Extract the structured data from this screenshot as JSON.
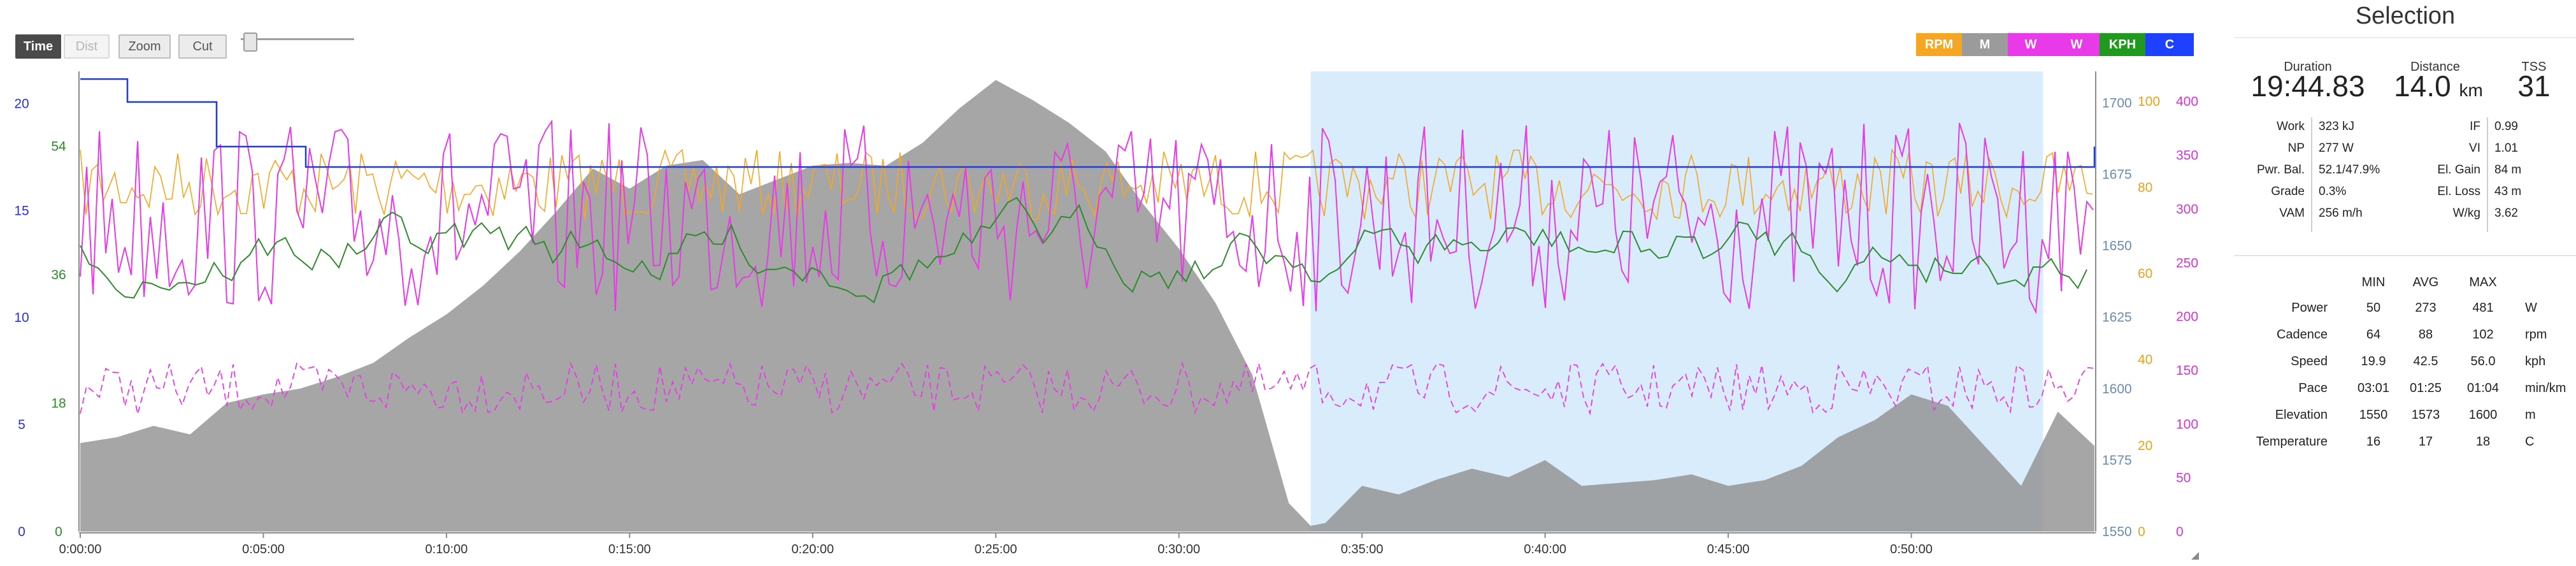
{
  "toolbar": {
    "buttons": [
      {
        "label": "Time",
        "state": "active"
      },
      {
        "label": "Dist",
        "state": "disabled"
      },
      {
        "label": "Zoom",
        "state": "normal"
      },
      {
        "label": "Cut",
        "state": "normal"
      }
    ]
  },
  "legend": [
    {
      "label": "RPM",
      "color": "#f5a623"
    },
    {
      "label": "M",
      "color": "#9b9b9b"
    },
    {
      "label": "W",
      "color": "#e83ae8"
    },
    {
      "label": "W",
      "color": "#e83ae8"
    },
    {
      "label": "KPH",
      "color": "#1f9a1f"
    },
    {
      "label": "C",
      "color": "#1e40ff"
    }
  ],
  "colors": {
    "elevation_fill": "#8d8d8d",
    "selection_fill": "#d8ecfb",
    "cadence": "#f5a623",
    "power": "#e83ae8",
    "speed": "#2e8b2e",
    "temperature": "#1e3be6"
  },
  "chart_data": {
    "type": "line",
    "x_label_ticks": [
      "0:00:00",
      "0:05:00",
      "0:10:00",
      "0:15:00",
      "0:20:00",
      "0:25:00",
      "0:30:00",
      "0:35:00",
      "0:40:00",
      "0:45:00",
      "0:50:00"
    ],
    "x_range_min": [
      0,
      55
    ],
    "selection_range_min": [
      33.6,
      53.6
    ],
    "axes": {
      "temperature_C": {
        "ticks": [
          "0",
          "5",
          "10",
          "15",
          "20"
        ],
        "range": [
          0,
          21.5
        ],
        "color": "#2d2de0"
      },
      "speed_kph": {
        "ticks": [
          "0",
          "18",
          "36",
          "54"
        ],
        "range": [
          0,
          64.5
        ],
        "color": "#2a8a2a"
      },
      "elevation_m": {
        "ticks": [
          "1550",
          "1575",
          "1600",
          "1625",
          "1650",
          "1675",
          "1700"
        ],
        "range": [
          1550,
          1711
        ],
        "color": "#6a8bb0"
      },
      "cadence_rpm": {
        "ticks": [
          "0",
          "20",
          "40",
          "60",
          "80",
          "100"
        ],
        "range": [
          0,
          107
        ],
        "color": "#e6a21a"
      },
      "power_w": {
        "ticks": [
          "0",
          "50",
          "100",
          "150",
          "200",
          "250",
          "300",
          "350",
          "400"
        ],
        "range": [
          0,
          428
        ],
        "color": "#d633d6"
      }
    },
    "series": [
      {
        "name": "M",
        "values": [
          [
            0,
            1581
          ],
          [
            1,
            1583
          ],
          [
            2,
            1587
          ],
          [
            3,
            1584
          ],
          [
            4,
            1595
          ],
          [
            5,
            1598
          ],
          [
            6,
            1600
          ],
          [
            7,
            1604
          ],
          [
            8,
            1609
          ],
          [
            9,
            1618
          ],
          [
            10,
            1626
          ],
          [
            11,
            1636
          ],
          [
            12,
            1648
          ],
          [
            13,
            1662
          ],
          [
            14,
            1677
          ],
          [
            15,
            1670
          ],
          [
            16,
            1678
          ],
          [
            17,
            1680
          ],
          [
            18,
            1668
          ],
          [
            19,
            1673
          ],
          [
            20,
            1678
          ],
          [
            21,
            1679
          ],
          [
            22,
            1678
          ],
          [
            23,
            1686
          ],
          [
            24,
            1698
          ],
          [
            25,
            1708
          ],
          [
            26,
            1701
          ],
          [
            27,
            1693
          ],
          [
            28,
            1683
          ],
          [
            29,
            1665
          ],
          [
            30,
            1649
          ],
          [
            31,
            1630
          ],
          [
            32,
            1605
          ],
          [
            33,
            1560
          ],
          [
            33.6,
            1552
          ],
          [
            34,
            1553
          ],
          [
            35,
            1566
          ],
          [
            36,
            1563
          ],
          [
            37,
            1568
          ],
          [
            38,
            1572
          ],
          [
            39,
            1569
          ],
          [
            40,
            1575
          ],
          [
            41,
            1566
          ],
          [
            42,
            1567
          ],
          [
            43,
            1568
          ],
          [
            44,
            1570
          ],
          [
            45,
            1566
          ],
          [
            46,
            1568
          ],
          [
            47,
            1573
          ],
          [
            48,
            1583
          ],
          [
            49,
            1589
          ],
          [
            50,
            1598
          ],
          [
            51,
            1594
          ],
          [
            52,
            1580
          ],
          [
            53,
            1566
          ],
          [
            54,
            1592
          ],
          [
            55,
            1580
          ]
        ]
      }
    ]
  },
  "selection": {
    "title": "Selection",
    "summary": [
      {
        "label": "Duration",
        "value": "19:44.83",
        "unit": ""
      },
      {
        "label": "Distance",
        "value": "14.0",
        "unit": "km"
      },
      {
        "label": "TSS",
        "value": "31",
        "unit": ""
      }
    ],
    "metrics_left": [
      {
        "label": "Work",
        "value": "323 kJ"
      },
      {
        "label": "NP",
        "value": "277 W"
      },
      {
        "label": "Pwr. Bal.",
        "value": "52.1/47.9%"
      },
      {
        "label": "Grade",
        "value": "0.3%"
      },
      {
        "label": "VAM",
        "value": "256 m/h"
      }
    ],
    "metrics_right": [
      {
        "label": "IF",
        "value": "0.99"
      },
      {
        "label": "VI",
        "value": "1.01"
      },
      {
        "label": "El. Gain",
        "value": "84 m"
      },
      {
        "label": "El. Loss",
        "value": "43 m"
      },
      {
        "label": "W/kg",
        "value": "3.62"
      }
    ],
    "stats_headers": [
      "MIN",
      "AVG",
      "MAX"
    ],
    "stats": [
      {
        "label": "Power",
        "min": "50",
        "avg": "273",
        "max": "481",
        "unit": "W"
      },
      {
        "label": "Cadence",
        "min": "64",
        "avg": "88",
        "max": "102",
        "unit": "rpm"
      },
      {
        "label": "Speed",
        "min": "19.9",
        "avg": "42.5",
        "max": "56.0",
        "unit": "kph"
      },
      {
        "label": "Pace",
        "min": "03:01",
        "avg": "01:25",
        "max": "01:04",
        "unit": "min/km"
      },
      {
        "label": "Elevation",
        "min": "1550",
        "avg": "1573",
        "max": "1600",
        "unit": "m"
      },
      {
        "label": "Temperature",
        "min": "16",
        "avg": "17",
        "max": "18",
        "unit": "C"
      }
    ]
  }
}
